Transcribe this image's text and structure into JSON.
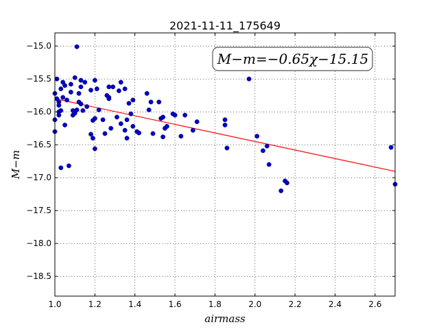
{
  "chart_data": {
    "type": "scatter",
    "title": "2021-11-11_175649",
    "xlabel": "airmass",
    "ylabel": "M−m",
    "xlim": [
      1.0,
      2.7
    ],
    "ylim": [
      -18.8,
      -14.8
    ],
    "y_inverted": true,
    "grid": true,
    "grid_style": "dotted",
    "x_ticks": [
      1.0,
      1.2,
      1.4,
      1.6,
      1.8,
      2.0,
      2.2,
      2.4,
      2.6
    ],
    "x_tick_labels": [
      "1.0",
      "1.2",
      "1.4",
      "1.6",
      "1.8",
      "2.0",
      "2.2",
      "2.4",
      "2.6"
    ],
    "y_ticks": [
      -15.0,
      -15.5,
      -16.0,
      -16.5,
      -17.0,
      -17.5,
      -18.0,
      -18.5
    ],
    "y_tick_labels": [
      "−15.0",
      "−15.5",
      "−16.0",
      "−16.5",
      "−17.0",
      "−17.5",
      "−18.0",
      "−18.5"
    ],
    "annotation": "M−m=−0.65χ−15.15",
    "fit": {
      "slope": -0.65,
      "intercept": -15.15,
      "color": "#ff0000"
    },
    "marker_color": "#0000cc",
    "points": [
      [
        1.0,
        -16.3
      ],
      [
        1.0,
        -15.72
      ],
      [
        1.0,
        -16.12
      ],
      [
        1.01,
        -15.5
      ],
      [
        1.01,
        -15.8
      ],
      [
        1.02,
        -16.0
      ],
      [
        1.02,
        -15.85
      ],
      [
        1.02,
        -15.9
      ],
      [
        1.02,
        -16.05
      ],
      [
        1.03,
        -15.65
      ],
      [
        1.03,
        -15.98
      ],
      [
        1.03,
        -16.85
      ],
      [
        1.04,
        -15.55
      ],
      [
        1.04,
        -15.78
      ],
      [
        1.05,
        -15.6
      ],
      [
        1.05,
        -16.2
      ],
      [
        1.06,
        -15.82
      ],
      [
        1.07,
        -16.82
      ],
      [
        1.08,
        -15.58
      ],
      [
        1.08,
        -15.7
      ],
      [
        1.09,
        -15.98
      ],
      [
        1.09,
        -16.05
      ],
      [
        1.1,
        -15.48
      ],
      [
        1.1,
        -16.02
      ],
      [
        1.11,
        -15.01
      ],
      [
        1.11,
        -15.97
      ],
      [
        1.12,
        -15.72
      ],
      [
        1.12,
        -15.85
      ],
      [
        1.13,
        -15.52
      ],
      [
        1.13,
        -15.62
      ],
      [
        1.13,
        -15.88
      ],
      [
        1.14,
        -15.98
      ],
      [
        1.15,
        -15.55
      ],
      [
        1.16,
        -15.92
      ],
      [
        1.18,
        -15.67
      ],
      [
        1.18,
        -16.34
      ],
      [
        1.19,
        -16.13
      ],
      [
        1.19,
        -16.4
      ],
      [
        1.2,
        -15.52
      ],
      [
        1.2,
        -16.1
      ],
      [
        1.2,
        -16.56
      ],
      [
        1.21,
        -15.65
      ],
      [
        1.22,
        -15.97
      ],
      [
        1.24,
        -16.12
      ],
      [
        1.25,
        -16.33
      ],
      [
        1.26,
        -15.75
      ],
      [
        1.27,
        -15.62
      ],
      [
        1.27,
        -15.78
      ],
      [
        1.27,
        -15.8
      ],
      [
        1.28,
        -16.25
      ],
      [
        1.29,
        -15.62
      ],
      [
        1.31,
        -16.08
      ],
      [
        1.32,
        -15.68
      ],
      [
        1.33,
        -15.55
      ],
      [
        1.33,
        -16.18
      ],
      [
        1.35,
        -16.28
      ],
      [
        1.35,
        -15.65
      ],
      [
        1.36,
        -16.12
      ],
      [
        1.36,
        -16.4
      ],
      [
        1.37,
        -15.87
      ],
      [
        1.38,
        -16.03
      ],
      [
        1.39,
        -15.82
      ],
      [
        1.39,
        -16.22
      ],
      [
        1.41,
        -16.3
      ],
      [
        1.42,
        -16.32
      ],
      [
        1.46,
        -15.72
      ],
      [
        1.47,
        -15.97
      ],
      [
        1.48,
        -15.85
      ],
      [
        1.49,
        -16.33
      ],
      [
        1.52,
        -15.85
      ],
      [
        1.53,
        -16.1
      ],
      [
        1.54,
        -16.08
      ],
      [
        1.54,
        -16.38
      ],
      [
        1.55,
        -16.25
      ],
      [
        1.56,
        -16.22
      ],
      [
        1.59,
        -16.03
      ],
      [
        1.6,
        -16.05
      ],
      [
        1.63,
        -16.37
      ],
      [
        1.65,
        -16.05
      ],
      [
        1.69,
        -16.28
      ],
      [
        1.71,
        -16.15
      ],
      [
        1.85,
        -16.12
      ],
      [
        1.85,
        -16.2
      ],
      [
        1.86,
        -16.55
      ],
      [
        1.97,
        -15.5
      ],
      [
        2.01,
        -16.37
      ],
      [
        2.04,
        -16.59
      ],
      [
        2.06,
        -16.52
      ],
      [
        2.07,
        -16.8
      ],
      [
        2.13,
        -17.2
      ],
      [
        2.15,
        -17.05
      ],
      [
        2.16,
        -17.08
      ],
      [
        2.68,
        -16.54
      ],
      [
        2.7,
        -17.1
      ]
    ]
  }
}
